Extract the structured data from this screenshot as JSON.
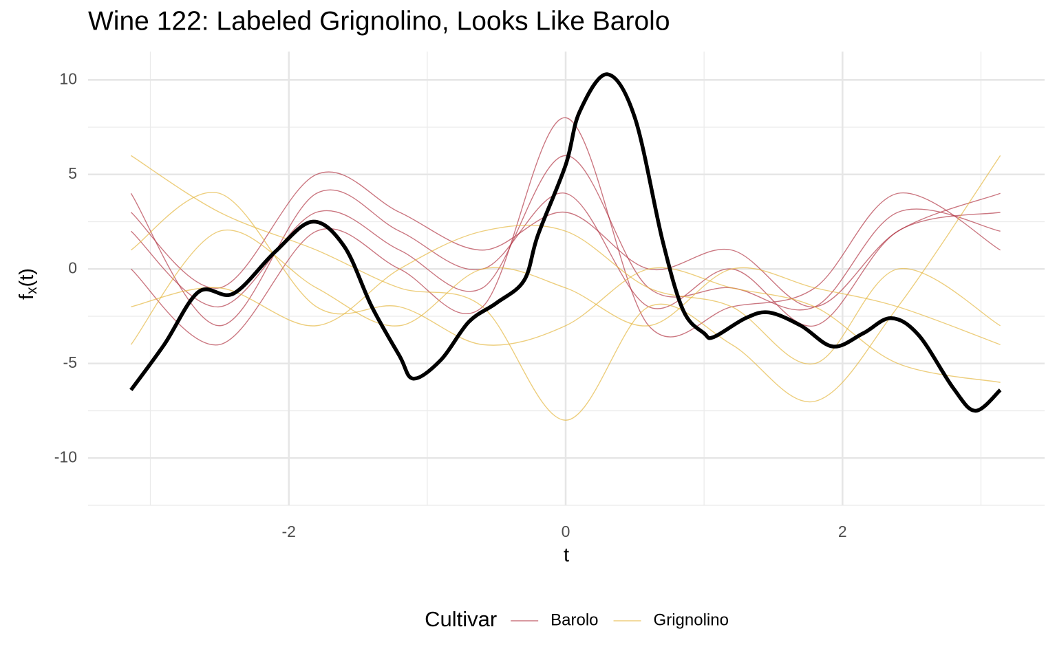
{
  "chart_data": {
    "type": "line",
    "title": "Wine 122: Labeled Grignolino, Looks Like Barolo",
    "xlabel": "t",
    "ylabel": {
      "base": "f",
      "sub": "x",
      "rest": "(t)"
    },
    "xlim": [
      -3.45,
      3.46
    ],
    "ylim": [
      -12.5,
      11.5
    ],
    "xticks": [
      -2,
      0,
      2
    ],
    "yticks": [
      -10,
      -5,
      0,
      5,
      10
    ],
    "xminorticks": [
      -3,
      -1,
      1,
      3
    ],
    "yminorticks": [
      -12.5,
      -7.5,
      -2.5,
      2.5,
      7.5
    ],
    "grid": true,
    "legend_title": "Cultivar",
    "legend_position": "bottom",
    "curve_x": [
      -3.14,
      -2.5,
      -1.8,
      -1.2,
      -0.6,
      0,
      0.6,
      1.2,
      1.8,
      2.4,
      3.14
    ],
    "groups": [
      {
        "name": "Barolo",
        "color": "#b0303f",
        "opacity": 0.22,
        "curves": [
          [
            2,
            -2,
            3,
            1,
            -1,
            6,
            -1,
            -1,
            -2,
            3,
            2
          ],
          [
            4,
            -3,
            4,
            2,
            0,
            4,
            -2,
            0,
            -3,
            2,
            3
          ],
          [
            0,
            -4,
            2,
            0,
            -2,
            8,
            -3,
            -2,
            -1,
            4,
            1
          ],
          [
            3,
            -1,
            5,
            3,
            1,
            3,
            0,
            1,
            -2,
            2,
            4
          ]
        ]
      },
      {
        "name": "Grignolino",
        "color": "#e3b43a",
        "opacity": 0.22,
        "curves": [
          [
            -4,
            2,
            -1,
            -3,
            0,
            -1,
            -3,
            0,
            -1,
            -2,
            -4
          ],
          [
            6,
            3,
            1,
            -1,
            -2,
            -8,
            -2,
            -4,
            -7,
            -2,
            6
          ],
          [
            -2,
            -1,
            -3,
            0,
            2,
            2,
            -1,
            -2,
            -5,
            0,
            -3
          ],
          [
            1,
            4,
            -2,
            -2,
            -4,
            -3,
            0,
            -1,
            -2,
            -5,
            -6
          ]
        ]
      }
    ],
    "highlight": {
      "color": "#000000",
      "x": [
        -3.14,
        -2.9,
        -2.65,
        -2.4,
        -2.1,
        -1.83,
        -1.6,
        -1.4,
        -1.2,
        -1.1,
        -0.9,
        -0.7,
        -0.5,
        -0.3,
        -0.2,
        0,
        0.1,
        0.3,
        0.5,
        0.7,
        0.85,
        1.0,
        1.07,
        1.3,
        1.47,
        1.7,
        1.93,
        2.15,
        2.35,
        2.55,
        2.8,
        2.96,
        3.14
      ],
      "values": [
        -6.4,
        -4.0,
        -1.2,
        -1.3,
        0.9,
        2.5,
        1.2,
        -2.0,
        -4.6,
        -5.8,
        -4.8,
        -2.8,
        -1.8,
        -0.6,
        1.8,
        5.5,
        8.3,
        10.3,
        8.0,
        1.5,
        -2.2,
        -3.4,
        -3.6,
        -2.6,
        -2.3,
        -3.0,
        -4.1,
        -3.4,
        -2.6,
        -3.5,
        -6.3,
        -7.5,
        -6.4
      ]
    }
  }
}
